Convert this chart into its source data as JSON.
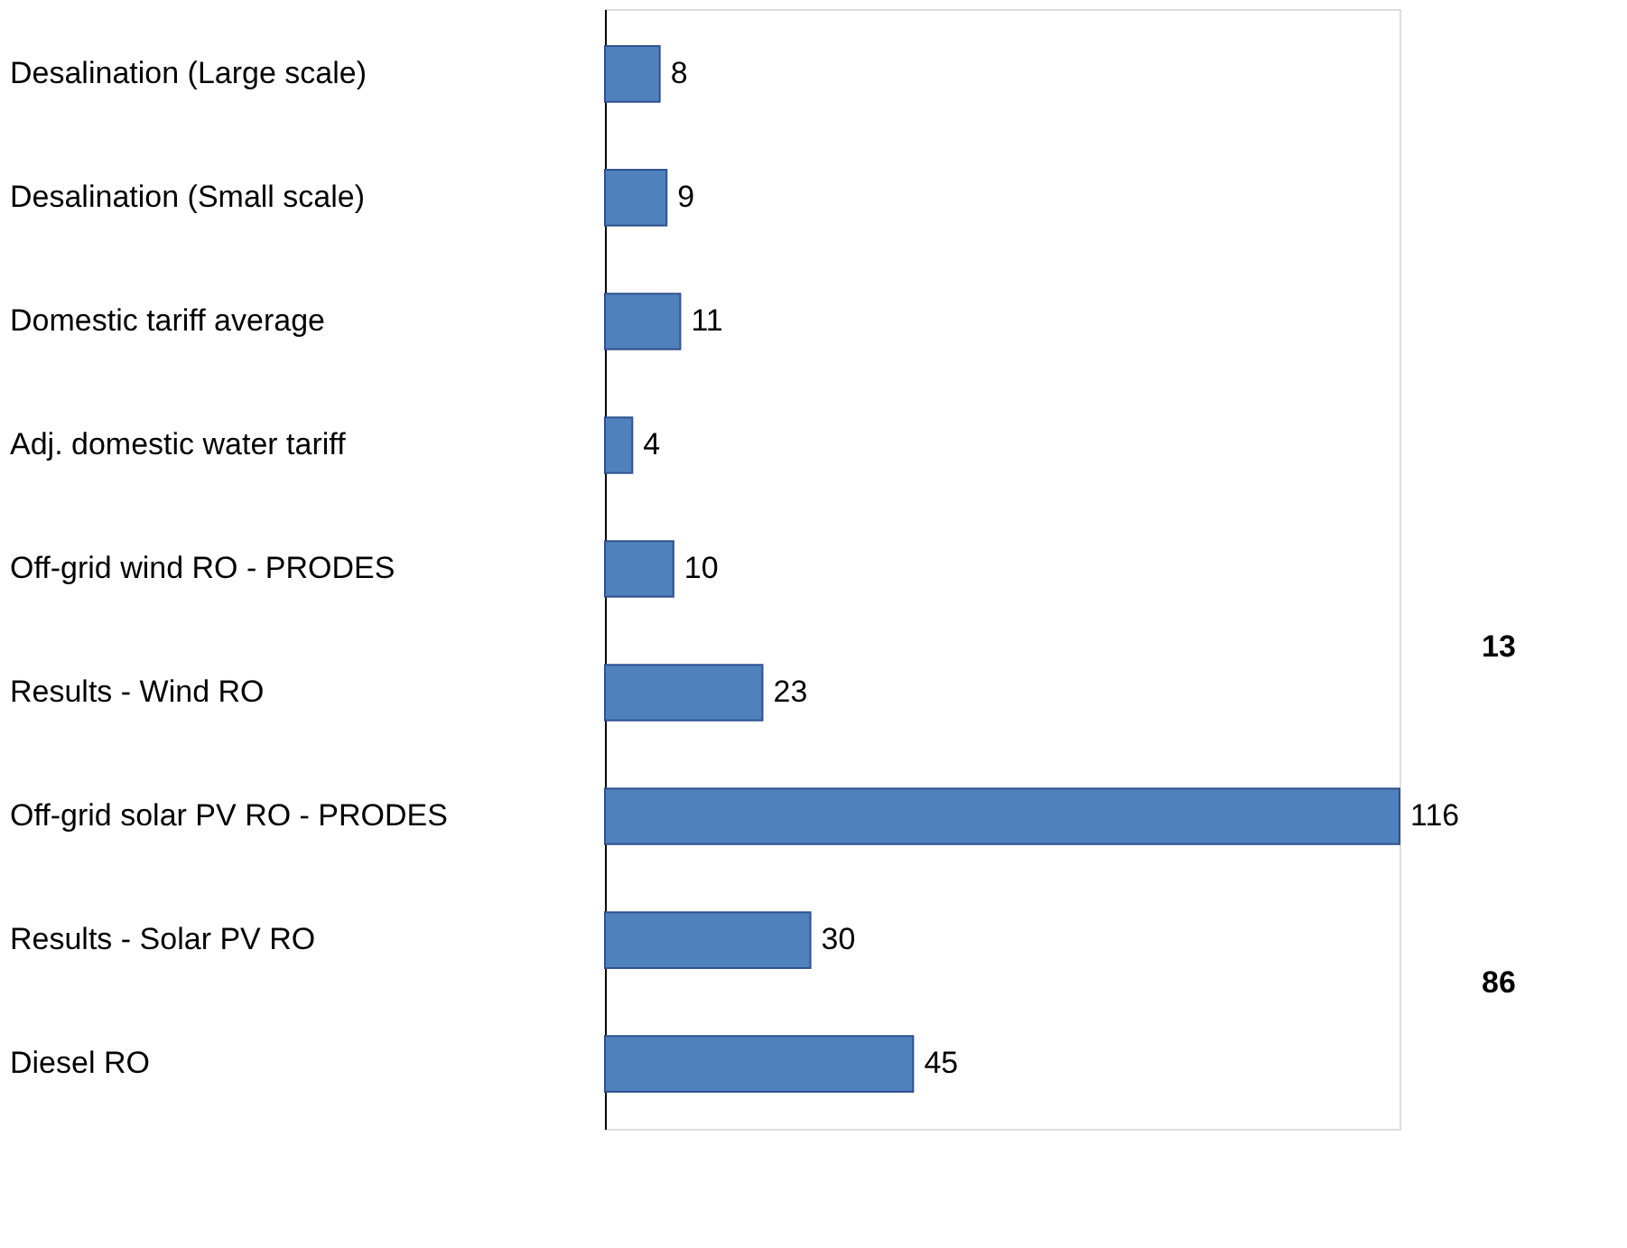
{
  "chart_data": {
    "type": "bar",
    "orientation": "horizontal",
    "categories": [
      "Desalination (Large scale)",
      "Desalination (Small scale)",
      "Domestic tariff average",
      "Adj. domestic water tariff",
      "Off-grid wind RO - PRODES",
      "Results - Wind RO",
      "Off-grid solar PV RO - PRODES",
      "Results - Solar PV RO",
      "Diesel RO"
    ],
    "values": [
      8,
      9,
      11,
      4,
      10,
      23,
      116,
      30,
      45
    ],
    "color": "#4f81bd",
    "data_labels": true,
    "tick_labels": "y",
    "annotations": [
      "13",
      "86"
    ]
  }
}
